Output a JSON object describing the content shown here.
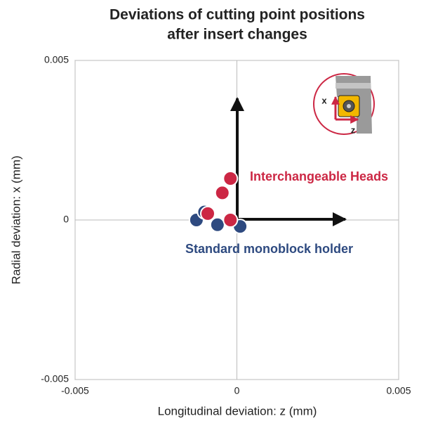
{
  "chart_data": {
    "type": "scatter",
    "title": [
      "Deviations of cutting point positions",
      "after insert changes"
    ],
    "xlabel": "Longitudinal deviation: z (mm)",
    "ylabel": "Radial deviation: x (mm)",
    "xlim": [
      -0.005,
      0.005
    ],
    "ylim": [
      -0.005,
      0.005
    ],
    "xticks": [
      -0.005,
      0,
      0.005
    ],
    "yticks": [
      -0.005,
      0,
      0.005
    ],
    "grid": true,
    "series": [
      {
        "name": "Standard monoblock holder",
        "color": "#2e4a80",
        "x": [
          -0.00125,
          -0.001,
          -0.0006,
          0.0001
        ],
        "y": [
          0,
          0.00025,
          -0.00015,
          -0.0002
        ]
      },
      {
        "name": "Interchangeable Heads",
        "color": "#cc2744",
        "x": [
          -0.0009,
          -0.0002,
          -0.00045,
          -0.0002
        ],
        "y": [
          0.0002,
          0,
          0.00085,
          0.0013
        ]
      }
    ],
    "inset_labels": {
      "x": "x",
      "z": "z"
    }
  }
}
